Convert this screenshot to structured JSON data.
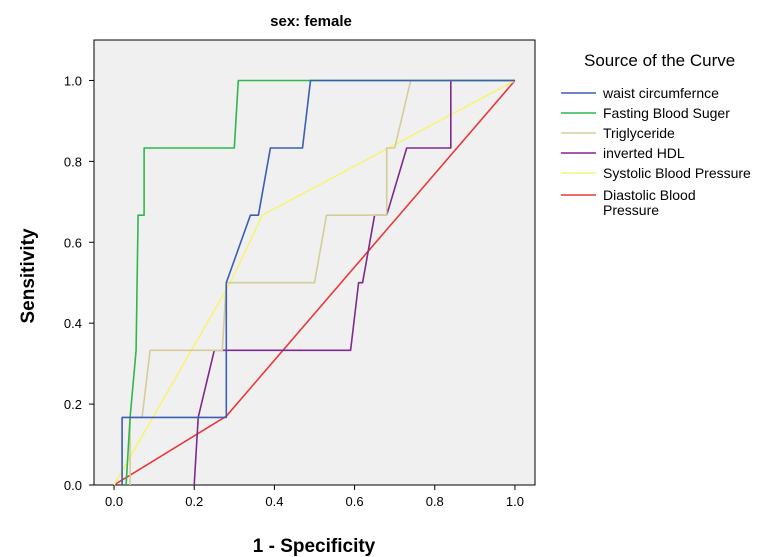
{
  "chart_data": {
    "type": "line",
    "title": "sex: female",
    "xlabel": "1 - Specificity",
    "ylabel": "Sensitivity",
    "xlim": [
      -0.05,
      1.05
    ],
    "ylim": [
      0.0,
      1.1
    ],
    "xticks": [
      "0.0",
      "0.2",
      "0.4",
      "0.6",
      "0.8",
      "1.0"
    ],
    "yticks": [
      "0.0",
      "0.2",
      "0.4",
      "0.6",
      "0.8",
      "1.0"
    ],
    "grid": false,
    "legend_title": "Source of the Curve",
    "legend_position": "right",
    "series": [
      {
        "name": "waist circumfernce",
        "color": "#3b5fb5",
        "points": [
          [
            0.02,
            0.0
          ],
          [
            0.02,
            0.167
          ],
          [
            0.28,
            0.167
          ],
          [
            0.28,
            0.5
          ],
          [
            0.34,
            0.667
          ],
          [
            0.36,
            0.667
          ],
          [
            0.39,
            0.833
          ],
          [
            0.47,
            0.833
          ],
          [
            0.49,
            1.0
          ],
          [
            1.0,
            1.0
          ]
        ]
      },
      {
        "name": "Fasting Blood Suger",
        "color": "#2eb84a",
        "points": [
          [
            0.03,
            0.0
          ],
          [
            0.04,
            0.167
          ],
          [
            0.055,
            0.333
          ],
          [
            0.06,
            0.667
          ],
          [
            0.075,
            0.667
          ],
          [
            0.075,
            0.833
          ],
          [
            0.3,
            0.833
          ],
          [
            0.31,
            1.0
          ],
          [
            1.0,
            1.0
          ]
        ]
      },
      {
        "name": "Triglyceride",
        "color": "#d4cd9a",
        "points": [
          [
            0.04,
            0.0
          ],
          [
            0.04,
            0.167
          ],
          [
            0.07,
            0.167
          ],
          [
            0.09,
            0.333
          ],
          [
            0.27,
            0.333
          ],
          [
            0.28,
            0.5
          ],
          [
            0.5,
            0.5
          ],
          [
            0.53,
            0.667
          ],
          [
            0.68,
            0.667
          ],
          [
            0.68,
            0.833
          ],
          [
            0.7,
            0.833
          ],
          [
            0.74,
            1.0
          ],
          [
            1.0,
            1.0
          ]
        ]
      },
      {
        "name": "inverted HDL",
        "color": "#7e2a8a",
        "points": [
          [
            0.2,
            0.0
          ],
          [
            0.21,
            0.167
          ],
          [
            0.25,
            0.333
          ],
          [
            0.59,
            0.333
          ],
          [
            0.61,
            0.5
          ],
          [
            0.62,
            0.5
          ],
          [
            0.65,
            0.667
          ],
          [
            0.68,
            0.667
          ],
          [
            0.73,
            0.833
          ],
          [
            0.84,
            0.833
          ],
          [
            0.84,
            1.0
          ],
          [
            1.0,
            1.0
          ]
        ]
      },
      {
        "name": "Systolic Blood Pressure",
        "color": "#f7f37a",
        "points": [
          [
            0.0,
            0.0
          ],
          [
            0.29,
            0.5
          ],
          [
            0.37,
            0.667
          ],
          [
            1.0,
            1.0
          ]
        ]
      },
      {
        "name": "Diastolic Blood Pressure",
        "color": "#e8393a",
        "points": [
          [
            0.0,
            0.0
          ],
          [
            0.28,
            0.17
          ],
          [
            1.0,
            1.0
          ]
        ]
      }
    ]
  }
}
